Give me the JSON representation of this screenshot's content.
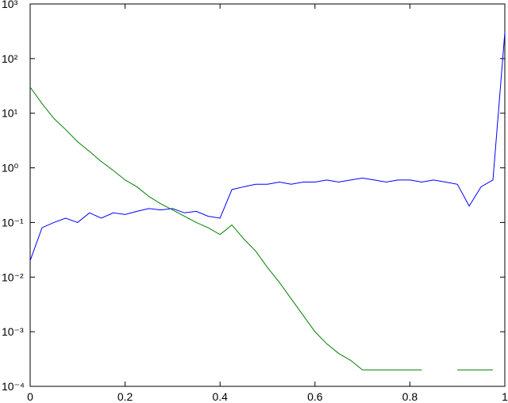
{
  "chart_data": {
    "type": "line",
    "log_y": true,
    "grid": false,
    "x": [
      0,
      0.025,
      0.05,
      0.075,
      0.1,
      0.125,
      0.15,
      0.175,
      0.2,
      0.225,
      0.25,
      0.275,
      0.3,
      0.325,
      0.35,
      0.375,
      0.4,
      0.425,
      0.45,
      0.475,
      0.5,
      0.525,
      0.55,
      0.575,
      0.6,
      0.625,
      0.65,
      0.675,
      0.7,
      0.725,
      0.75,
      0.775,
      0.8,
      0.825,
      0.85,
      0.875,
      0.9,
      0.925,
      0.95,
      0.975,
      1
    ],
    "series": [
      {
        "color": "#0000ff",
        "values": [
          0.02,
          0.08,
          0.1,
          0.12,
          0.1,
          0.15,
          0.12,
          0.15,
          0.14,
          0.16,
          0.18,
          0.17,
          0.18,
          0.15,
          0.16,
          0.13,
          0.12,
          0.4,
          0.45,
          0.5,
          0.5,
          0.55,
          0.5,
          0.55,
          0.55,
          0.6,
          0.55,
          0.6,
          0.65,
          0.6,
          0.55,
          0.6,
          0.6,
          0.55,
          0.6,
          0.55,
          0.5,
          0.2,
          0.45,
          0.6,
          300
        ]
      },
      {
        "color": "#007f00",
        "values": [
          30,
          15,
          8,
          5,
          3,
          2,
          1.3,
          0.9,
          0.6,
          0.45,
          0.3,
          0.22,
          0.17,
          0.13,
          0.1,
          0.08,
          0.06,
          0.09,
          0.05,
          0.03,
          0.015,
          0.008,
          0.004,
          0.002,
          0.001,
          0.0006,
          0.0004,
          0.0003,
          0.0002,
          0.0002,
          0.0002,
          0.0002,
          0.0002,
          0.0002,
          null,
          null,
          0.0002,
          0.0002,
          0.0002,
          0.0002,
          null
        ]
      }
    ],
    "xlim": [
      0,
      1
    ],
    "xticks": [
      0,
      0.2,
      0.4,
      0.6,
      0.8,
      1
    ],
    "ylim": [
      0.0001,
      1000
    ],
    "yticks": [
      {
        "value": 0.0001,
        "label": "10⁻⁴"
      },
      {
        "value": 0.001,
        "label": "10⁻³"
      },
      {
        "value": 0.01,
        "label": "10⁻²"
      },
      {
        "value": 0.1,
        "label": "10⁻¹"
      },
      {
        "value": 1,
        "label": "10⁰"
      },
      {
        "value": 10,
        "label": "10¹"
      },
      {
        "value": 100,
        "label": "10²"
      },
      {
        "value": 1000,
        "label": "10³"
      }
    ]
  }
}
